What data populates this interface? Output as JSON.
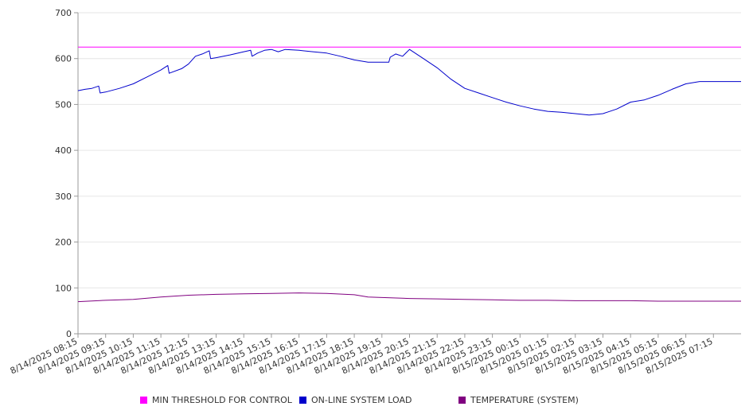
{
  "chart_data": {
    "type": "line",
    "ylim": [
      0,
      700
    ],
    "y_ticks": [
      0,
      100,
      200,
      300,
      400,
      500,
      600,
      700
    ],
    "grid": true,
    "legend_position": "bottom",
    "x_tick_labels": [
      "8/14/2025 08:15",
      "8/14/2025 09:15",
      "8/14/2025 10:15",
      "8/14/2025 11:15",
      "8/14/2025 12:15",
      "8/14/2025 13:15",
      "8/14/2025 14:15",
      "8/14/2025 15:15",
      "8/14/2025 16:15",
      "8/14/2025 17:15",
      "8/14/2025 18:15",
      "8/14/2025 19:15",
      "8/14/2025 20:15",
      "8/14/2025 21:15",
      "8/14/2025 22:15",
      "8/14/2025 23:15",
      "8/15/2025 00:15",
      "8/15/2025 01:15",
      "8/15/2025 02:15",
      "8/15/2025 03:15",
      "8/15/2025 04:15",
      "8/15/2025 05:15",
      "8/15/2025 06:15",
      "8/15/2025 07:15"
    ],
    "series": [
      {
        "name": "MIN THRESHOLD FOR CONTROL",
        "color": "#ff00ff",
        "points": [
          [
            0,
            625
          ],
          [
            24,
            625
          ]
        ]
      },
      {
        "name": "ON-LINE SYSTEM LOAD",
        "color": "#0000cc",
        "points": [
          [
            0,
            530
          ],
          [
            0.25,
            533
          ],
          [
            0.5,
            535
          ],
          [
            0.75,
            540
          ],
          [
            0.8,
            525
          ],
          [
            1,
            527
          ],
          [
            1.5,
            535
          ],
          [
            2,
            545
          ],
          [
            2.5,
            560
          ],
          [
            3,
            575
          ],
          [
            3.25,
            585
          ],
          [
            3.3,
            568
          ],
          [
            3.75,
            578
          ],
          [
            4,
            588
          ],
          [
            4.25,
            605
          ],
          [
            4.5,
            610
          ],
          [
            4.75,
            617
          ],
          [
            4.8,
            600
          ],
          [
            5,
            602
          ],
          [
            5.5,
            608
          ],
          [
            6,
            615
          ],
          [
            6.25,
            618
          ],
          [
            6.3,
            605
          ],
          [
            6.5,
            612
          ],
          [
            6.75,
            618
          ],
          [
            7,
            620
          ],
          [
            7.25,
            615
          ],
          [
            7.5,
            620
          ],
          [
            8,
            618
          ],
          [
            8.5,
            615
          ],
          [
            9,
            612
          ],
          [
            9.5,
            605
          ],
          [
            10,
            597
          ],
          [
            10.5,
            592
          ],
          [
            11,
            592
          ],
          [
            11.25,
            592
          ],
          [
            11.3,
            603
          ],
          [
            11.5,
            610
          ],
          [
            11.75,
            605
          ],
          [
            12,
            620
          ],
          [
            12.5,
            600
          ],
          [
            13,
            580
          ],
          [
            13.5,
            555
          ],
          [
            14,
            535
          ],
          [
            14.5,
            525
          ],
          [
            15,
            515
          ],
          [
            15.5,
            505
          ],
          [
            16,
            497
          ],
          [
            16.5,
            490
          ],
          [
            17,
            485
          ],
          [
            17.5,
            483
          ],
          [
            18,
            480
          ],
          [
            18.5,
            477
          ],
          [
            19,
            480
          ],
          [
            19.5,
            490
          ],
          [
            20,
            505
          ],
          [
            20.5,
            510
          ],
          [
            21,
            520
          ],
          [
            21.5,
            533
          ],
          [
            22,
            545
          ],
          [
            22.5,
            550
          ],
          [
            24,
            550
          ]
        ]
      },
      {
        "name": "TEMPERATURE (SYSTEM)",
        "color": "#800080",
        "points": [
          [
            0,
            70
          ],
          [
            1,
            73
          ],
          [
            2,
            75
          ],
          [
            3,
            80
          ],
          [
            4,
            84
          ],
          [
            5,
            86
          ],
          [
            6,
            87
          ],
          [
            7,
            88
          ],
          [
            8,
            89
          ],
          [
            9,
            88
          ],
          [
            10,
            85
          ],
          [
            10.5,
            80
          ],
          [
            11,
            79
          ],
          [
            12,
            77
          ],
          [
            13,
            76
          ],
          [
            14,
            75
          ],
          [
            15,
            74
          ],
          [
            16,
            73
          ],
          [
            17,
            73
          ],
          [
            18,
            72
          ],
          [
            19,
            72
          ],
          [
            20,
            72
          ],
          [
            21,
            71
          ],
          [
            22,
            71
          ],
          [
            24,
            71
          ]
        ]
      }
    ]
  }
}
